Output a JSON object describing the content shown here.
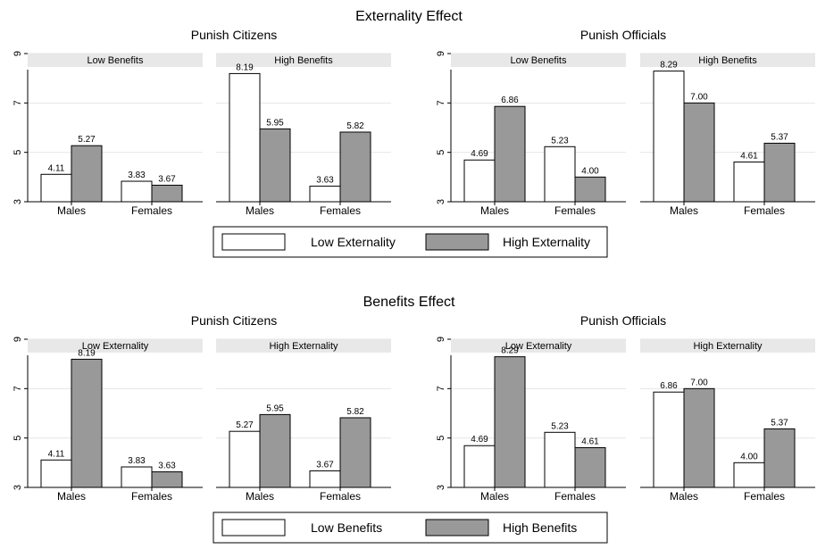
{
  "colors": {
    "series_a": "#ffffff",
    "series_b": "#999999",
    "strip": "#e8e8e8"
  },
  "sections": [
    {
      "title": "Externality Effect",
      "groups": [
        {
          "title": "Punish Citizens",
          "panels": [
            {
              "strip": "Low Benefits",
              "labels": [
                "4.11",
                "5.27",
                "3.83",
                "3.67"
              ]
            },
            {
              "strip": "High Benefits",
              "labels": [
                "8.19",
                "5.95",
                "3.63",
                "5.82"
              ]
            }
          ]
        },
        {
          "title": "Punish Officials",
          "panels": [
            {
              "strip": "Low Benefits",
              "labels": [
                "4.69",
                "6.86",
                "5.23",
                "4.00"
              ]
            },
            {
              "strip": "High Benefits",
              "labels": [
                "8.29",
                "7.00",
                "4.61",
                "5.37"
              ]
            }
          ]
        }
      ],
      "legend": [
        "Low Externality",
        "High Externality"
      ]
    },
    {
      "title": "Benefits Effect",
      "groups": [
        {
          "title": "Punish Citizens",
          "panels": [
            {
              "strip": "Low Externality",
              "labels": [
                "4.11",
                "8.19",
                "3.83",
                "3.63"
              ]
            },
            {
              "strip": "High Externality",
              "labels": [
                "5.27",
                "5.95",
                "3.67",
                "5.82"
              ]
            }
          ]
        },
        {
          "title": "Punish Officials",
          "panels": [
            {
              "strip": "Low Externality",
              "labels": [
                "4.69",
                "8.29",
                "5.23",
                "4.61"
              ]
            },
            {
              "strip": "High Externality",
              "labels": [
                "6.86",
                "7.00",
                "4.00",
                "5.37"
              ]
            }
          ]
        }
      ],
      "legend": [
        "Low Benefits",
        "High Benefits"
      ]
    }
  ],
  "chart_data": [
    {
      "type": "bar",
      "title": "Externality Effect — Punish Citizens — Low Benefits",
      "categories": [
        "Males",
        "Females"
      ],
      "ylim": [
        3,
        9
      ],
      "yticks": [
        3,
        5,
        7,
        9
      ],
      "series": [
        {
          "name": "Low Externality",
          "values": [
            4.11,
            3.83
          ]
        },
        {
          "name": "High Externality",
          "values": [
            5.27,
            3.67
          ]
        }
      ]
    },
    {
      "type": "bar",
      "title": "Externality Effect — Punish Citizens — High Benefits",
      "categories": [
        "Males",
        "Females"
      ],
      "ylim": [
        3,
        9
      ],
      "yticks": [
        3,
        5,
        7,
        9
      ],
      "series": [
        {
          "name": "Low Externality",
          "values": [
            8.19,
            3.63
          ]
        },
        {
          "name": "High Externality",
          "values": [
            5.95,
            5.82
          ]
        }
      ]
    },
    {
      "type": "bar",
      "title": "Externality Effect — Punish Officials — Low Benefits",
      "categories": [
        "Males",
        "Females"
      ],
      "ylim": [
        3,
        9
      ],
      "yticks": [
        3,
        5,
        7,
        9
      ],
      "series": [
        {
          "name": "Low Externality",
          "values": [
            4.69,
            5.23
          ]
        },
        {
          "name": "High Externality",
          "values": [
            6.86,
            4.0
          ]
        }
      ]
    },
    {
      "type": "bar",
      "title": "Externality Effect — Punish Officials — High Benefits",
      "categories": [
        "Males",
        "Females"
      ],
      "ylim": [
        3,
        9
      ],
      "yticks": [
        3,
        5,
        7,
        9
      ],
      "series": [
        {
          "name": "Low Externality",
          "values": [
            8.29,
            4.61
          ]
        },
        {
          "name": "High Externality",
          "values": [
            7.0,
            5.37
          ]
        }
      ]
    },
    {
      "type": "bar",
      "title": "Benefits Effect — Punish Citizens — Low Externality",
      "categories": [
        "Males",
        "Females"
      ],
      "ylim": [
        3,
        9
      ],
      "yticks": [
        3,
        5,
        7,
        9
      ],
      "series": [
        {
          "name": "Low Benefits",
          "values": [
            4.11,
            3.83
          ]
        },
        {
          "name": "High Benefits",
          "values": [
            8.19,
            3.63
          ]
        }
      ]
    },
    {
      "type": "bar",
      "title": "Benefits Effect — Punish Citizens — High Externality",
      "categories": [
        "Males",
        "Females"
      ],
      "ylim": [
        3,
        9
      ],
      "yticks": [
        3,
        5,
        7,
        9
      ],
      "series": [
        {
          "name": "Low Benefits",
          "values": [
            5.27,
            3.67
          ]
        },
        {
          "name": "High Benefits",
          "values": [
            5.95,
            5.82
          ]
        }
      ]
    },
    {
      "type": "bar",
      "title": "Benefits Effect — Punish Officials — Low Externality",
      "categories": [
        "Males",
        "Females"
      ],
      "ylim": [
        3,
        9
      ],
      "yticks": [
        3,
        5,
        7,
        9
      ],
      "series": [
        {
          "name": "Low Benefits",
          "values": [
            4.69,
            5.23
          ]
        },
        {
          "name": "High Benefits",
          "values": [
            8.29,
            4.61
          ]
        }
      ]
    },
    {
      "type": "bar",
      "title": "Benefits Effect — Punish Officials — High Externality",
      "categories": [
        "Males",
        "Females"
      ],
      "ylim": [
        3,
        9
      ],
      "yticks": [
        3,
        5,
        7,
        9
      ],
      "series": [
        {
          "name": "Low Benefits",
          "values": [
            6.86,
            4.0
          ]
        },
        {
          "name": "High Benefits",
          "values": [
            7.0,
            5.37
          ]
        }
      ]
    }
  ]
}
